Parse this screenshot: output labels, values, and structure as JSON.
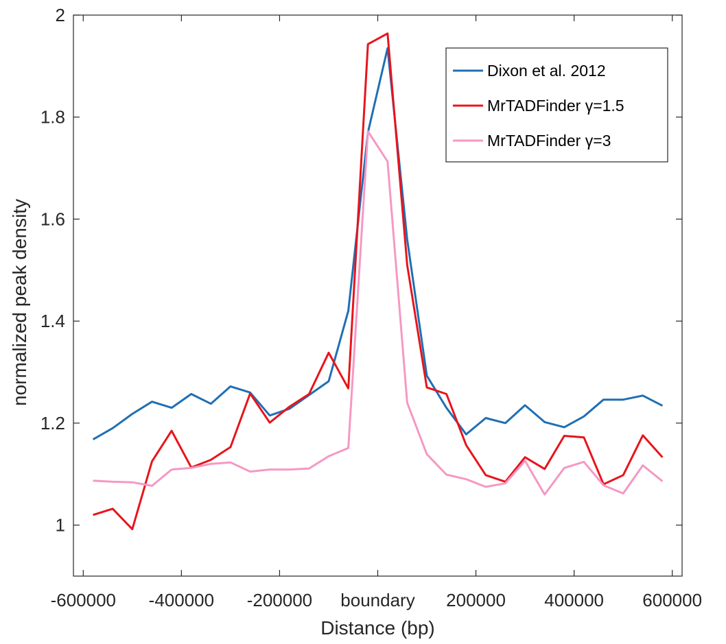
{
  "chart_data": {
    "type": "line",
    "title": "",
    "xlabel": "Distance (bp)",
    "ylabel": "normalized peak density",
    "xlim": [
      -620000,
      620000
    ],
    "ylim": [
      0.9,
      2.0
    ],
    "xticks": [
      {
        "value": -600000,
        "label": "-600000"
      },
      {
        "value": -400000,
        "label": "-400000"
      },
      {
        "value": -200000,
        "label": "-200000"
      },
      {
        "value": 0,
        "label": "boundary"
      },
      {
        "value": 200000,
        "label": "200000"
      },
      {
        "value": 400000,
        "label": "400000"
      },
      {
        "value": 600000,
        "label": "600000"
      }
    ],
    "yticks": [
      {
        "value": 1.0,
        "label": "1"
      },
      {
        "value": 1.2,
        "label": "1.2"
      },
      {
        "value": 1.4,
        "label": "1.4"
      },
      {
        "value": 1.6,
        "label": "1.6"
      },
      {
        "value": 1.8,
        "label": "1.8"
      },
      {
        "value": 2.0,
        "label": "2"
      }
    ],
    "grid": false,
    "legend_position": "top-right",
    "x": [
      -580000,
      -540000,
      -500000,
      -460000,
      -420000,
      -380000,
      -340000,
      -300000,
      -260000,
      -220000,
      -180000,
      -140000,
      -100000,
      -60000,
      -20000,
      20000,
      60000,
      100000,
      140000,
      180000,
      220000,
      260000,
      300000,
      340000,
      380000,
      420000,
      460000,
      500000,
      540000,
      580000
    ],
    "series": [
      {
        "name": "Dixon et al. 2012",
        "color": "#1f6fb4",
        "values": [
          1.168,
          1.19,
          1.218,
          1.242,
          1.23,
          1.257,
          1.238,
          1.272,
          1.26,
          1.215,
          1.228,
          1.255,
          1.282,
          1.42,
          1.77,
          1.935,
          1.56,
          1.293,
          1.23,
          1.178,
          1.21,
          1.2,
          1.235,
          1.202,
          1.192,
          1.213,
          1.246,
          1.246,
          1.254,
          1.234
        ]
      },
      {
        "name": "MrTADFinder γ=1.5",
        "color": "#e8141c",
        "values": [
          1.02,
          1.032,
          0.992,
          1.125,
          1.185,
          1.113,
          1.128,
          1.153,
          1.258,
          1.201,
          1.232,
          1.257,
          1.338,
          1.268,
          1.943,
          1.964,
          1.51,
          1.27,
          1.257,
          1.157,
          1.098,
          1.085,
          1.133,
          1.11,
          1.175,
          1.172,
          1.08,
          1.098,
          1.176,
          1.133
        ]
      },
      {
        "name": "MrTADFinder γ=3",
        "color": "#f598c4",
        "values": [
          1.087,
          1.085,
          1.084,
          1.077,
          1.109,
          1.112,
          1.12,
          1.123,
          1.105,
          1.109,
          1.109,
          1.111,
          1.135,
          1.151,
          1.772,
          1.713,
          1.24,
          1.139,
          1.099,
          1.09,
          1.075,
          1.082,
          1.126,
          1.06,
          1.112,
          1.124,
          1.078,
          1.062,
          1.117,
          1.086
        ]
      }
    ]
  }
}
